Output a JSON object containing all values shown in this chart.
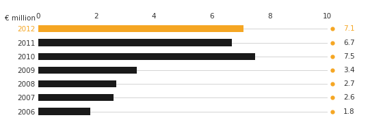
{
  "years": [
    "2012",
    "2011",
    "2010",
    "2009",
    "2008",
    "2007",
    "2006"
  ],
  "values": [
    7.1,
    6.7,
    7.5,
    3.4,
    2.7,
    2.6,
    1.8
  ],
  "bar_colors": [
    "#f5a623",
    "#1a1a1a",
    "#1a1a1a",
    "#1a1a1a",
    "#1a1a1a",
    "#1a1a1a",
    "#1a1a1a"
  ],
  "label_colors": [
    "#f5a623",
    "#333333",
    "#333333",
    "#333333",
    "#333333",
    "#333333",
    "#333333"
  ],
  "value_colors": [
    "#f5a623",
    "#333333",
    "#333333",
    "#333333",
    "#333333",
    "#333333",
    "#333333"
  ],
  "dot_color": "#f5a623",
  "xlabel": "€ million",
  "xlim": [
    0,
    10
  ],
  "xticks": [
    0,
    2,
    4,
    6,
    8,
    10
  ],
  "bar_height": 0.5,
  "background_color": "#ffffff",
  "grid_color": "#cccccc",
  "year_label_fontsize": 7.5,
  "value_label_fontsize": 7.5,
  "xlabel_fontsize": 7.5
}
